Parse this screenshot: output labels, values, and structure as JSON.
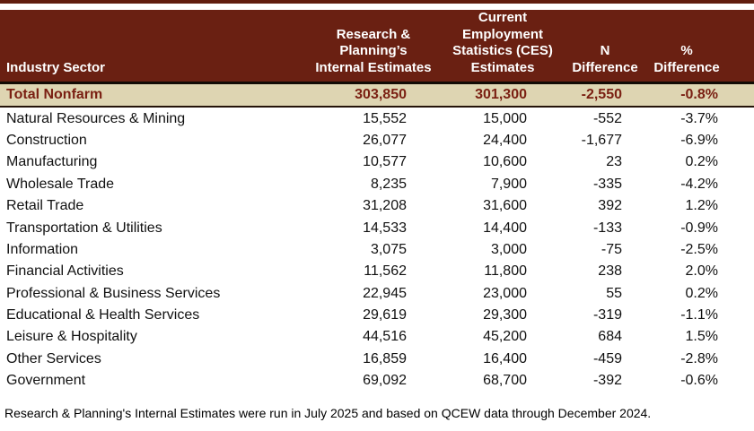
{
  "header": {
    "industry_sector": "Industry Sector",
    "internal": "Research &\nPlanning’s\nInternal Estimates",
    "ces": "Current\nEmployment\nStatistics (CES)\nEstimates",
    "n_diff": "N\nDifference",
    "pct_diff": "%\nDifference"
  },
  "rows": [
    {
      "sector": "Total Nonfarm",
      "internal": "303,850",
      "ces": "301,300",
      "n_diff": "-2,550",
      "pct_diff": "-0.8%"
    },
    {
      "sector": "Natural Resources & Mining",
      "internal": "15,552",
      "ces": "15,000",
      "n_diff": "-552",
      "pct_diff": "-3.7%"
    },
    {
      "sector": "Construction",
      "internal": "26,077",
      "ces": "24,400",
      "n_diff": "-1,677",
      "pct_diff": "-6.9%"
    },
    {
      "sector": "Manufacturing",
      "internal": "10,577",
      "ces": "10,600",
      "n_diff": "23",
      "pct_diff": "0.2%"
    },
    {
      "sector": "Wholesale Trade",
      "internal": "8,235",
      "ces": "7,900",
      "n_diff": "-335",
      "pct_diff": "-4.2%"
    },
    {
      "sector": "Retail Trade",
      "internal": "31,208",
      "ces": "31,600",
      "n_diff": "392",
      "pct_diff": "1.2%"
    },
    {
      "sector": "Transportation & Utilities",
      "internal": "14,533",
      "ces": "14,400",
      "n_diff": "-133",
      "pct_diff": "-0.9%"
    },
    {
      "sector": "Information",
      "internal": "3,075",
      "ces": "3,000",
      "n_diff": "-75",
      "pct_diff": "-2.5%"
    },
    {
      "sector": "Financial Activities",
      "internal": "11,562",
      "ces": "11,800",
      "n_diff": "238",
      "pct_diff": "2.0%"
    },
    {
      "sector": "Professional & Business Services",
      "internal": "22,945",
      "ces": "23,000",
      "n_diff": "55",
      "pct_diff": "0.2%"
    },
    {
      "sector": "Educational & Health Services",
      "internal": "29,619",
      "ces": "29,300",
      "n_diff": "-319",
      "pct_diff": "-1.1%"
    },
    {
      "sector": "Leisure & Hospitality",
      "internal": "44,516",
      "ces": "45,200",
      "n_diff": "684",
      "pct_diff": "1.5%"
    },
    {
      "sector": "Other Services",
      "internal": "16,859",
      "ces": "16,400",
      "n_diff": "-459",
      "pct_diff": "-2.8%"
    },
    {
      "sector": "Government",
      "internal": "69,092",
      "ces": "68,700",
      "n_diff": "-392",
      "pct_diff": "-0.6%"
    }
  ],
  "footnote": "Research & Planning's Internal Estimates were run in July 2025 and based on QCEW data through December 2024.",
  "colors": {
    "header_bg": "#6a2012",
    "top_bar": "#611d0e",
    "separator": "#120b05",
    "total_row_bg": "#ded5b2",
    "total_row_text": "#7a1f12"
  }
}
